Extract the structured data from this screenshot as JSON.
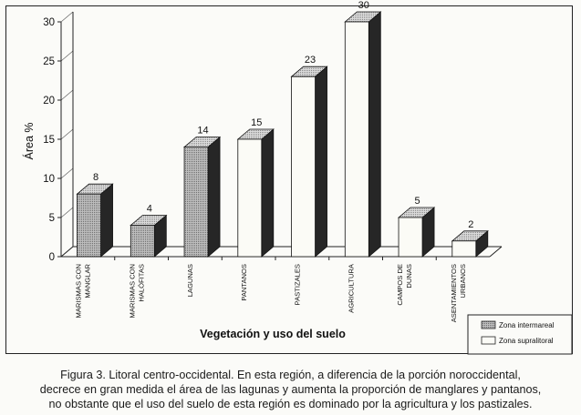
{
  "chart_data": {
    "type": "bar",
    "title": "",
    "xlabel": "Vegetación y uso del suelo",
    "ylabel": "Área %",
    "ylim": [
      0,
      30
    ],
    "yticks": [
      0,
      5,
      10,
      15,
      20,
      25,
      30
    ],
    "categories": [
      [
        "MARISMAS CON",
        "MANGLAR"
      ],
      [
        "MARISMAS CON",
        "HALÓFITAS"
      ],
      [
        "LAGUNAS"
      ],
      [
        "PANTANOS"
      ],
      [
        "PASTIZALES"
      ],
      [
        "AGRICULTURA"
      ],
      [
        "CAMPOS DE",
        "DUNAS"
      ],
      [
        "ASENTAMIENTOS",
        "URBANOS"
      ]
    ],
    "values": [
      8,
      4,
      14,
      15,
      23,
      30,
      5,
      2
    ],
    "zone": [
      "intermareal",
      "intermareal",
      "intermareal",
      "supralitoral",
      "supralitoral",
      "supralitoral",
      "supralitoral",
      "supralitoral"
    ],
    "legend": {
      "position": "bottom-right",
      "entries": [
        {
          "key": "intermareal",
          "label": "Zona intermareal"
        },
        {
          "key": "supralitoral",
          "label": "Zona supralitoral"
        }
      ]
    }
  },
  "caption": {
    "line1": "Figura 3. Litoral centro-occidental. En esta región, a diferencia de la porción noroccidental,",
    "line2": "decrece en gran medida el área de las lagunas y aumenta la proporción  de manglares y pantanos,",
    "line3": "no obstante que el uso del suelo de esta región es dominado por la agricultura y los pastizales."
  },
  "colors": {
    "intermareal_front": "#a9a9a9",
    "intermareal_top": "#c8c8c8",
    "supralitoral_front": "#fbfbf6",
    "supralitoral_top": "#d9d9d9",
    "side": "#262626",
    "axis": "#222222"
  }
}
